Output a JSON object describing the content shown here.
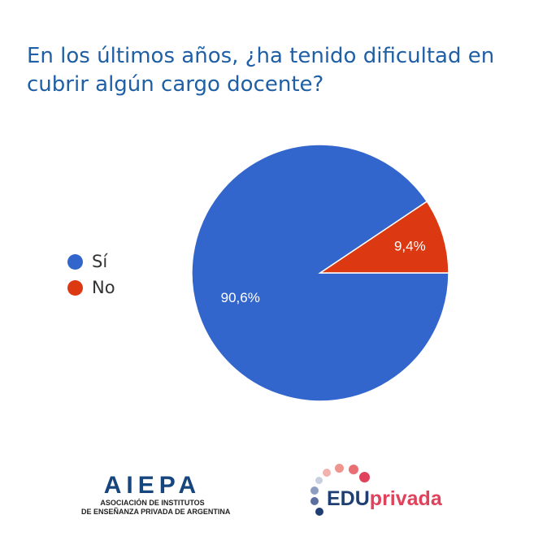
{
  "title": "En los últimos años, ¿ha tenido dificultad en cubrir algún cargo docente?",
  "chart_data": {
    "type": "pie",
    "title": "En los últimos años, ¿ha tenido dificultad en cubrir algún cargo docente?",
    "categories": [
      "Sí",
      "No"
    ],
    "values": [
      90.6,
      9.4
    ],
    "labels": [
      "90,6%",
      "9,4%"
    ],
    "colors": [
      "#3366cc",
      "#dc3912"
    ],
    "legend_position": "left"
  },
  "logos": {
    "aiepa": {
      "name": "AIEPA",
      "line1": "ASOCIACIÓN DE INSTITUTOS",
      "line2": "DE ENSEÑANZA PRIVADA DE ARGENTINA"
    },
    "eduprivada": {
      "part1": "EDU",
      "part2": "privada"
    }
  }
}
